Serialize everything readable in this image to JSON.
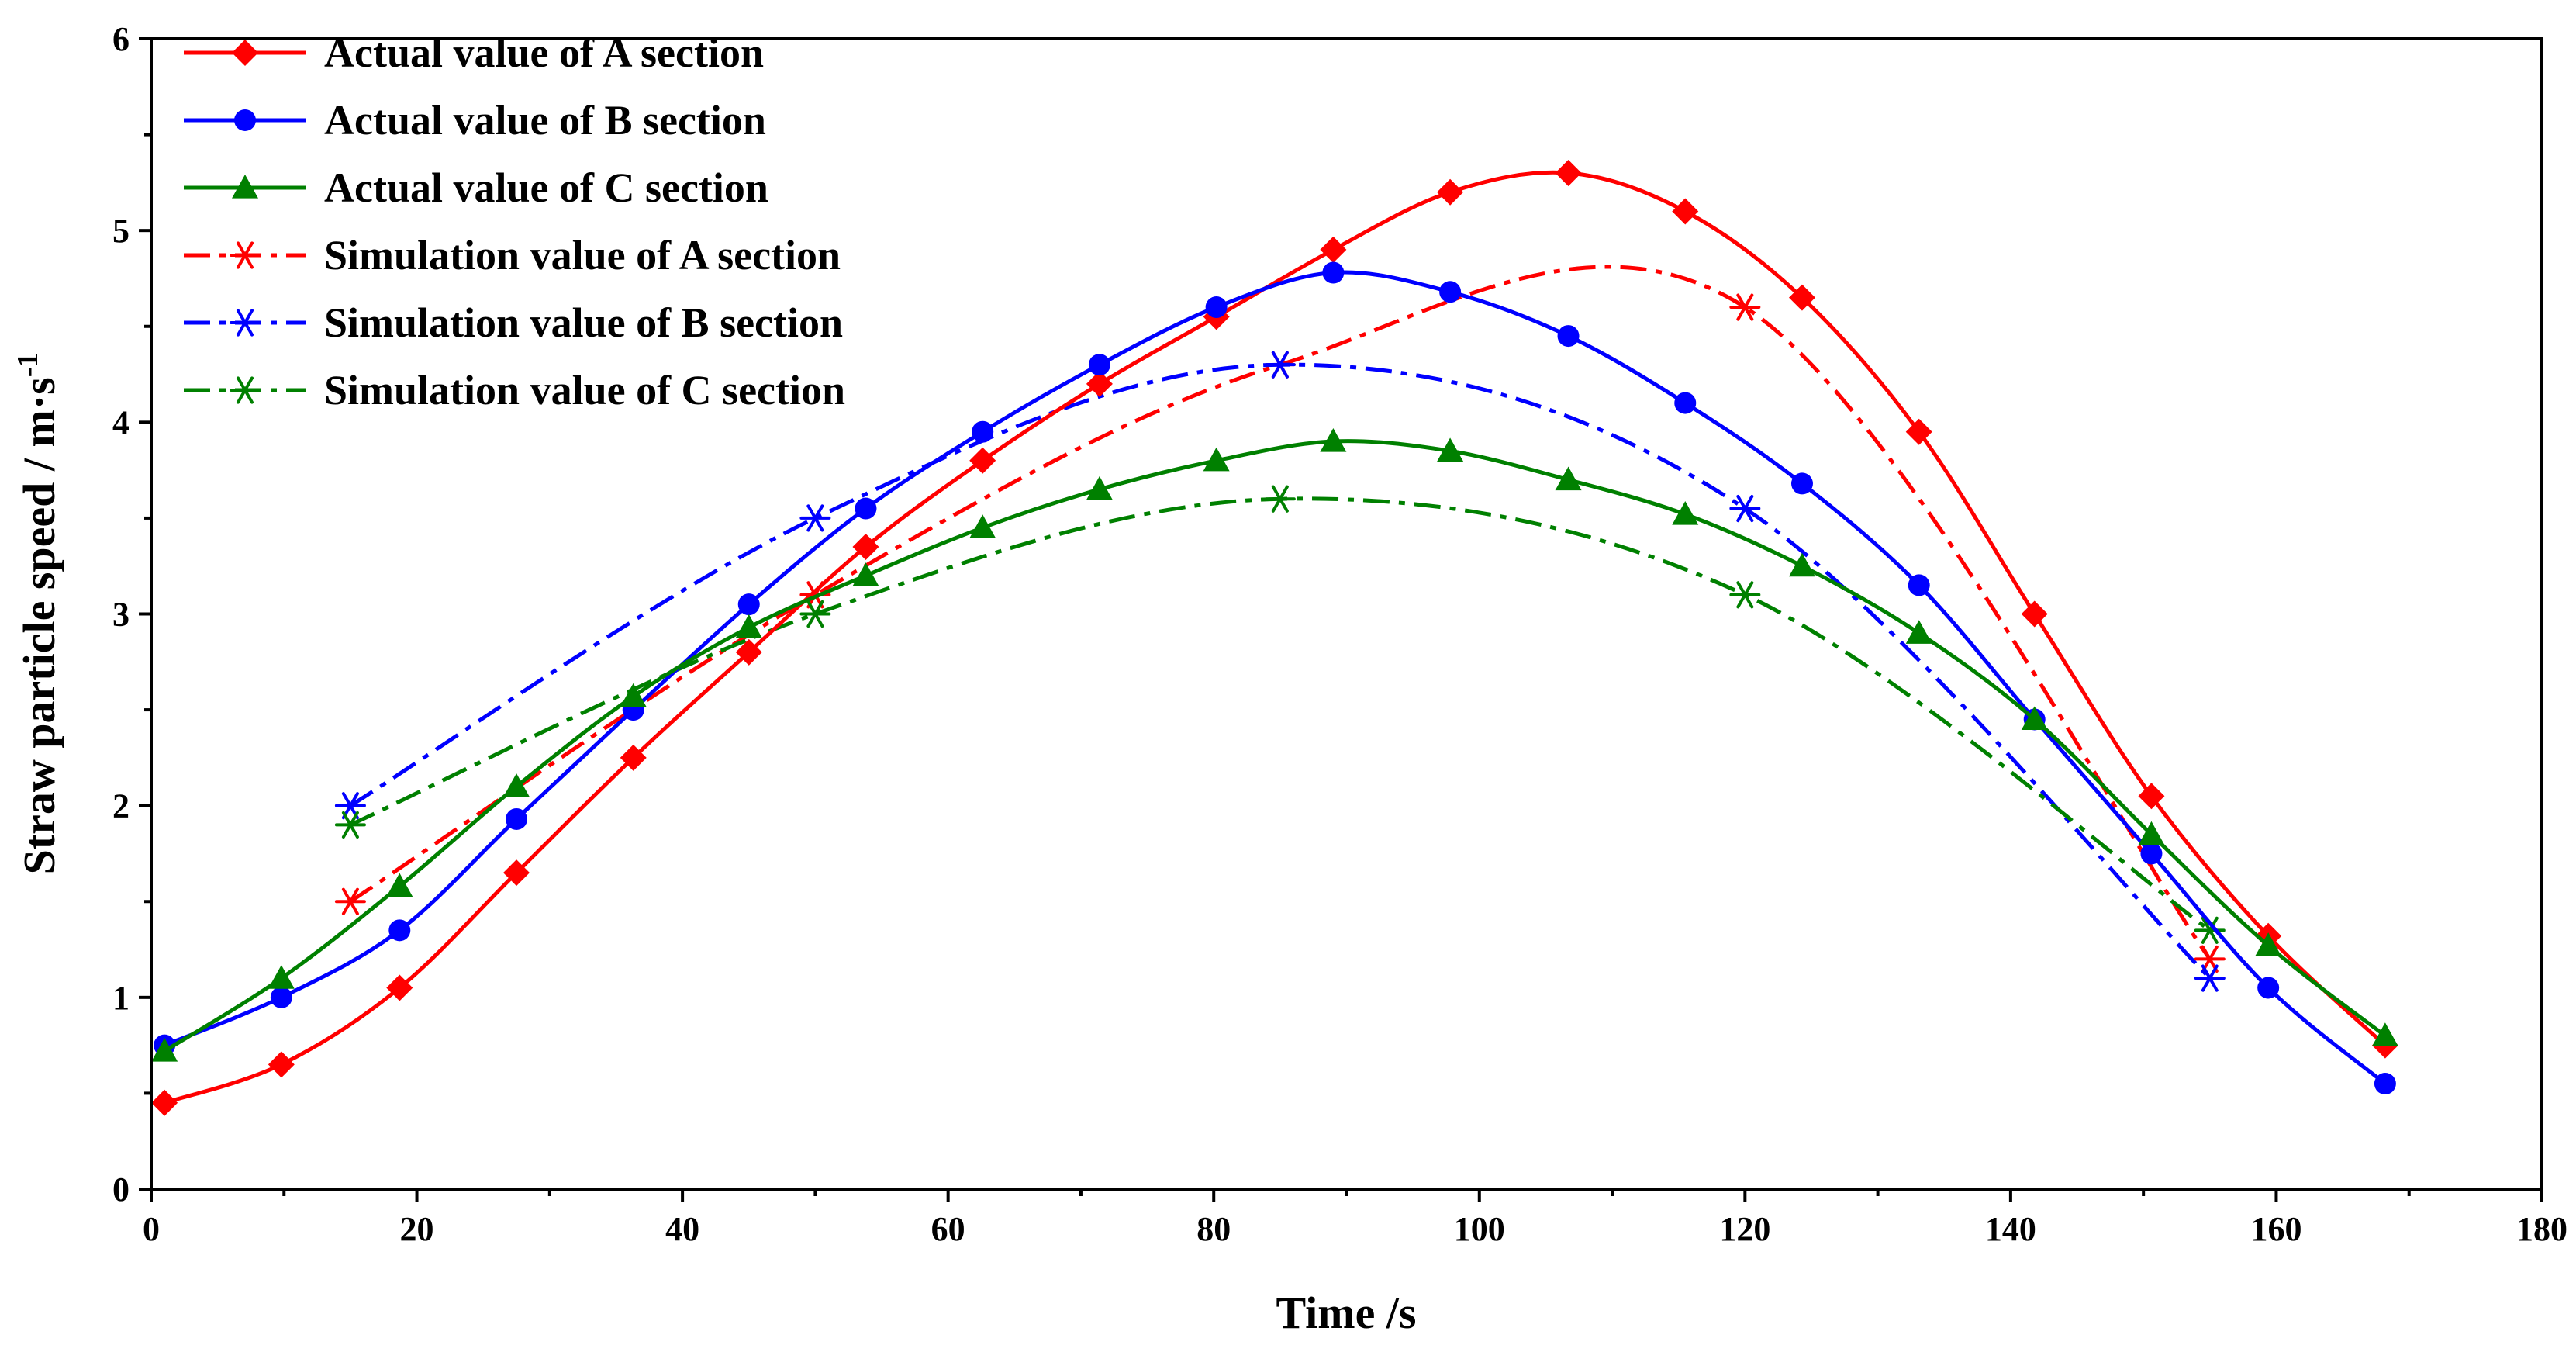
{
  "chart_data": {
    "type": "line",
    "title": "",
    "xlabel": "Time /s",
    "ylabel_main": "Straw particle speed / m·s",
    "ylabel_superscript": "-1",
    "xlim": [
      0,
      180
    ],
    "ylim": [
      0,
      6
    ],
    "x_ticks": [
      0,
      20,
      40,
      60,
      80,
      100,
      120,
      140,
      160,
      180
    ],
    "y_ticks": [
      0,
      1,
      2,
      3,
      4,
      5,
      6
    ],
    "x_tick_labels": [
      "0",
      "20",
      "40",
      "60",
      "80",
      "100",
      "120",
      "140",
      "160",
      "180"
    ],
    "y_tick_labels": [
      "0",
      "1",
      "2",
      "3",
      "4",
      "5",
      "6"
    ],
    "legend_position": "top-left",
    "series": [
      {
        "name": "Actual value of A section",
        "color": "#ff0000",
        "line_style": "solid",
        "marker": "diamond",
        "x": [
          1,
          9.8,
          18.7,
          27.5,
          36.3,
          45,
          53.8,
          62.6,
          71.4,
          80.2,
          89,
          97.8,
          106.7,
          115.5,
          124.3,
          133.1,
          141.8,
          150.6,
          159.4,
          168.2
        ],
        "y": [
          0.45,
          0.65,
          1.05,
          1.65,
          2.25,
          2.8,
          3.35,
          3.8,
          4.2,
          4.55,
          4.9,
          5.2,
          5.3,
          5.1,
          4.65,
          3.95,
          3.0,
          2.05,
          1.32,
          0.75
        ]
      },
      {
        "name": "Actual value of B section",
        "color": "#0000ff",
        "line_style": "solid",
        "marker": "circle",
        "x": [
          1,
          9.8,
          18.7,
          27.5,
          36.3,
          45,
          53.8,
          62.6,
          71.4,
          80.2,
          89,
          97.8,
          106.7,
          115.5,
          124.3,
          133.1,
          141.8,
          150.6,
          159.4,
          168.2
        ],
        "y": [
          0.75,
          1.0,
          1.35,
          1.93,
          2.5,
          3.05,
          3.55,
          3.95,
          4.3,
          4.6,
          4.78,
          4.68,
          4.45,
          4.1,
          3.68,
          3.15,
          2.45,
          1.75,
          1.05,
          0.55
        ]
      },
      {
        "name": "Actual value of C section",
        "color": "#008000",
        "line_style": "solid",
        "marker": "triangle",
        "x": [
          1,
          9.8,
          18.7,
          27.5,
          36.3,
          45,
          53.8,
          62.6,
          71.4,
          80.2,
          89,
          97.8,
          106.7,
          115.5,
          124.3,
          133.1,
          141.8,
          150.6,
          159.4,
          168.2
        ],
        "y": [
          0.72,
          1.1,
          1.58,
          2.1,
          2.57,
          2.93,
          3.2,
          3.45,
          3.65,
          3.8,
          3.9,
          3.85,
          3.7,
          3.52,
          3.25,
          2.9,
          2.45,
          1.85,
          1.27,
          0.8
        ]
      },
      {
        "name": "Simulation value of A section",
        "color": "#ff0000",
        "line_style": "dashdot",
        "marker": "asterisk",
        "x": [
          15,
          50,
          85,
          120,
          155
        ],
        "y": [
          1.5,
          3.1,
          4.3,
          4.6,
          1.2
        ]
      },
      {
        "name": "Simulation value of B section",
        "color": "#0000ff",
        "line_style": "dashdot",
        "marker": "asterisk",
        "x": [
          15,
          50,
          85,
          120,
          155
        ],
        "y": [
          2.0,
          3.5,
          4.3,
          3.55,
          1.1
        ]
      },
      {
        "name": "Simulation value of C section",
        "color": "#008000",
        "line_style": "dashdot",
        "marker": "asterisk",
        "x": [
          15,
          50,
          85,
          120,
          155
        ],
        "y": [
          1.9,
          3.0,
          3.6,
          3.1,
          1.35
        ]
      }
    ]
  }
}
